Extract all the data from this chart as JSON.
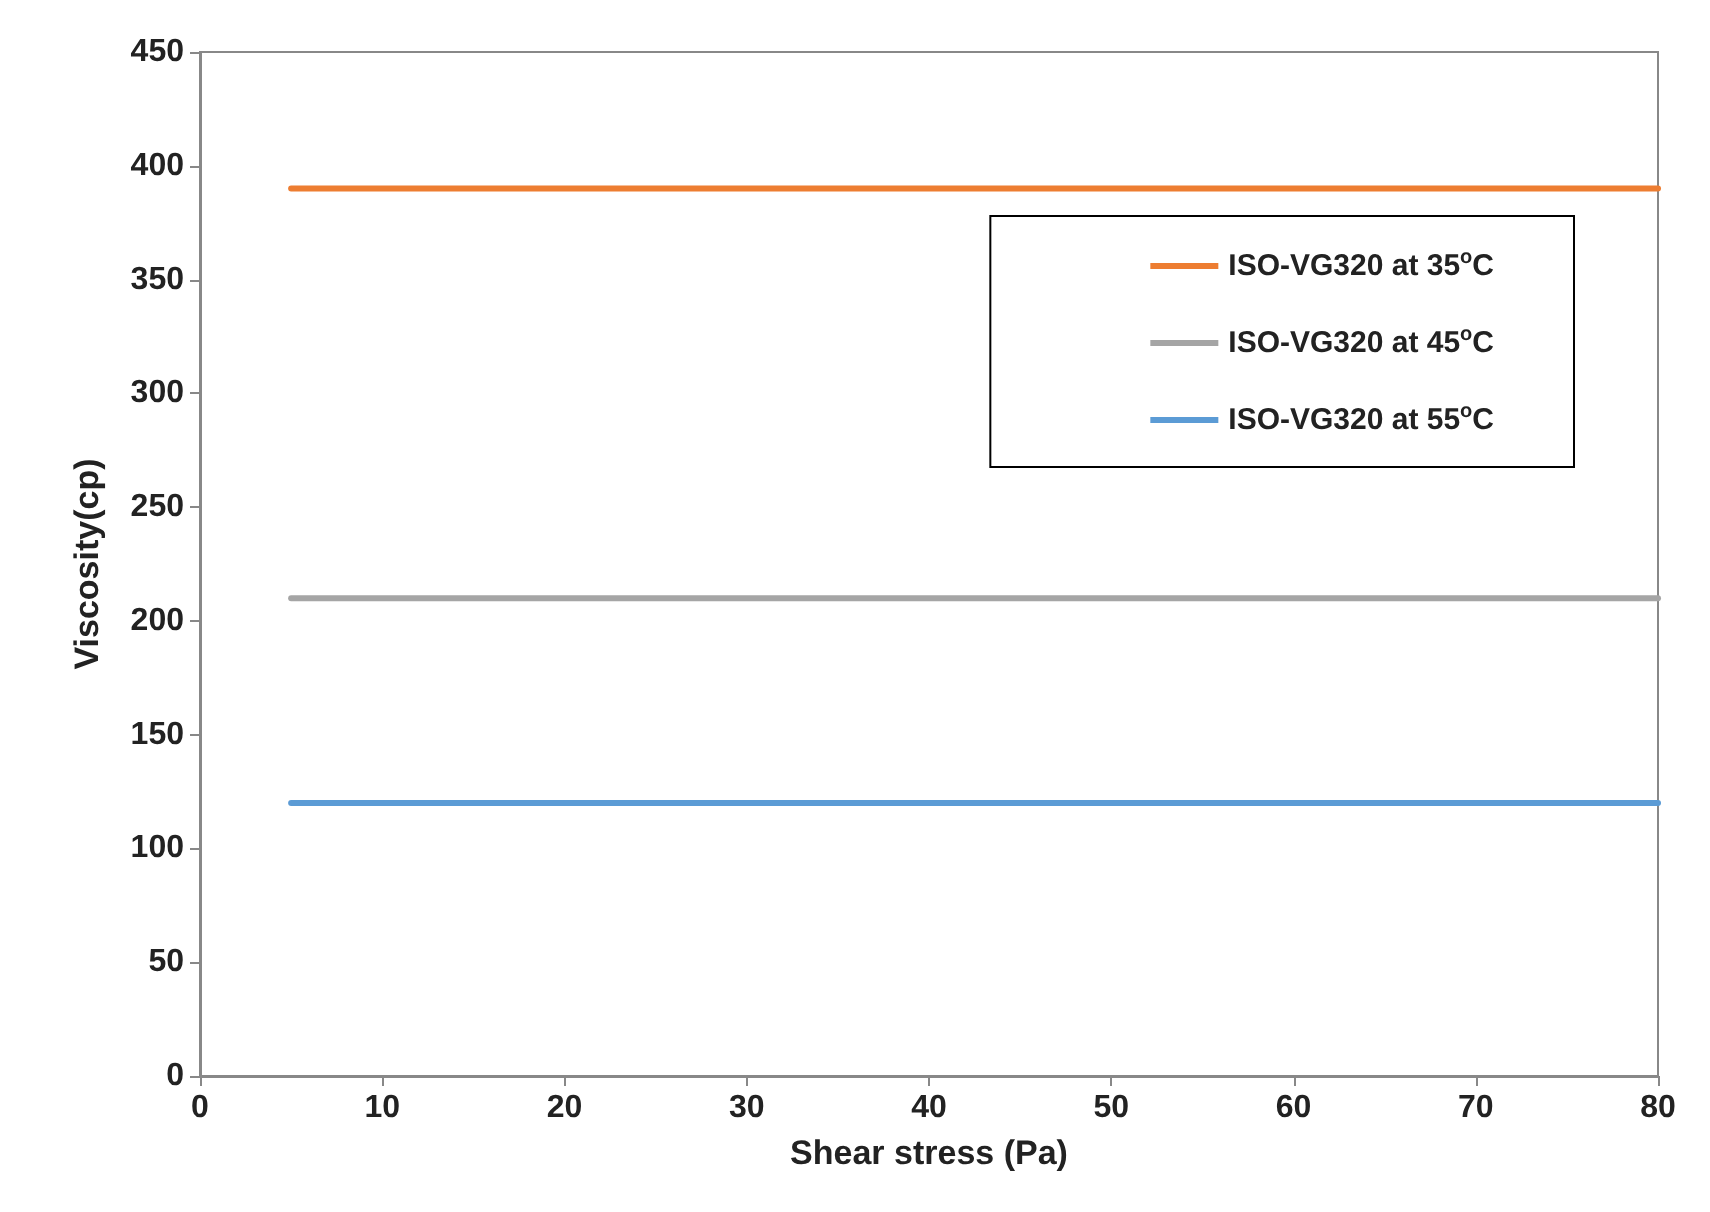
{
  "chart_data": {
    "type": "line",
    "xlabel": "Shear stress (Pa)",
    "ylabel": "Viscosity(cp)",
    "x": [
      5,
      80
    ],
    "series": [
      {
        "name": "ISO-VG320 at 35$^{o}$C",
        "color": "#ed7d31",
        "values": [
          390,
          390
        ]
      },
      {
        "name": "ISO-VG320 at 45$^{o}$C",
        "color": "#a5a5a5",
        "values": [
          210,
          210
        ]
      },
      {
        "name": "ISO-VG320 at 55$^{o}$C",
        "color": "#5b9bd5",
        "values": [
          120,
          120
        ]
      }
    ],
    "xlim": [
      0,
      80
    ],
    "xticks": [
      0,
      10,
      20,
      30,
      40,
      50,
      60,
      70,
      80
    ],
    "ylim": [
      0,
      450
    ],
    "yticks": [
      0,
      50,
      100,
      150,
      200,
      250,
      300,
      350,
      400,
      450
    ],
    "grid": false,
    "legend": "top right",
    "marker": "none",
    "line_style": "solid"
  }
}
